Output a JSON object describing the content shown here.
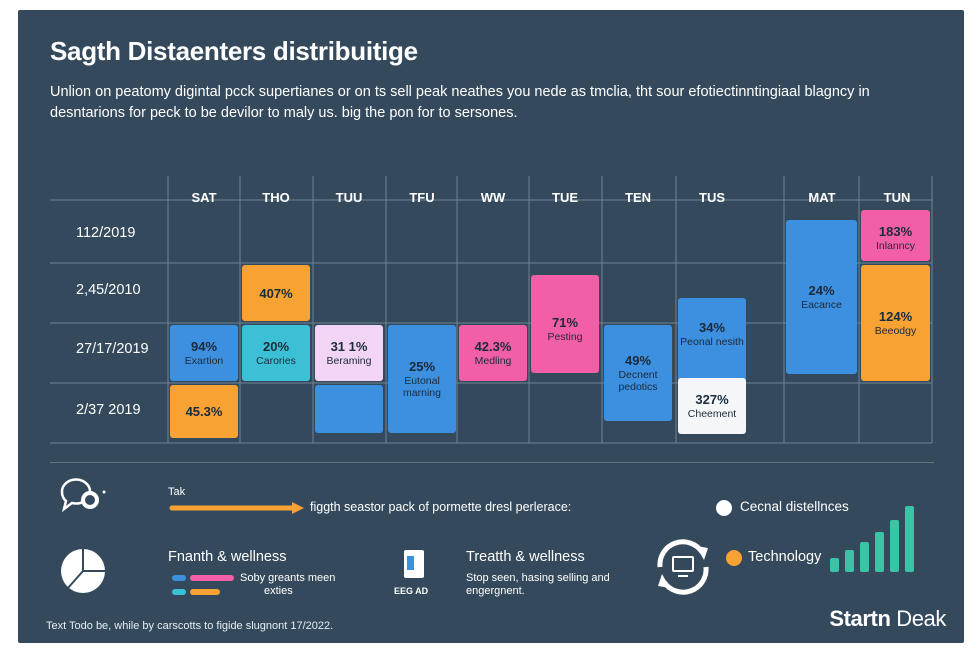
{
  "title": "Sagth Distaenters distribuitige",
  "subtitle": "Unlion on peatomy digintal pcck supertianes or on ts sell peak neathes you nede as tmclia, tht sour efotiectinntingiaal blagncy in desntarions for peck to be devilor to maly us. big the pon for to sersones.",
  "chart_data": {
    "type": "table",
    "columns": [
      "SAT",
      "THO",
      "TUU",
      "TFU",
      "WW",
      "TUE",
      "TEN",
      "TUS",
      "MAT",
      "TUN"
    ],
    "rows": [
      "112/2019",
      "2,45/2010",
      "27/17/2019",
      "2/37 2019"
    ],
    "cells": [
      {
        "col": "SAT",
        "row": "27/17/2019",
        "value": "94%",
        "label": "Exartion",
        "color": "#3d8fe0"
      },
      {
        "col": "SAT",
        "row": "2/37 2019",
        "value": "45.3%",
        "label": "",
        "color": "#f7a233"
      },
      {
        "col": "THO",
        "row": "2,45/2010",
        "value": "407%",
        "label": "",
        "color": "#f7a233"
      },
      {
        "col": "THO",
        "row": "27/17/2019",
        "value": "20%",
        "label": "Carories",
        "color": "#3cc0d6"
      },
      {
        "col": "TUU",
        "row": "27/17/2019",
        "value": "31 1%",
        "label": "Beraming",
        "color": "#f1d4f6"
      },
      {
        "col": "TUU",
        "row": "2/37 2019",
        "value": "",
        "label": "",
        "color": "#3d8fe0"
      },
      {
        "col": "TFU",
        "row": "27/17/2019",
        "value": "25%",
        "label": "Eutonal marning",
        "color": "#3d8fe0"
      },
      {
        "col": "WW",
        "row": "27/17/2019",
        "value": "42.3%",
        "label": "Medling",
        "color": "#f35ea9"
      },
      {
        "col": "TUE",
        "row": "2,45/2010",
        "value": "71%",
        "label": "Pesting",
        "color": "#f35ea9"
      },
      {
        "col": "TEN",
        "row": "27/17/2019",
        "value": "49%",
        "label": "Decnent pedotics",
        "color": "#3d8fe0"
      },
      {
        "col": "TUS",
        "row": "27/17/2019",
        "value": "34%",
        "label": "Peonal nesith",
        "color": "#3d8fe0"
      },
      {
        "col": "TUS",
        "row": "2/37 2019",
        "value": "327%",
        "label": "Cheement",
        "color": "#f4f6f8"
      },
      {
        "col": "MAT",
        "row": "27/17/2019",
        "value": "24%",
        "label": "Eacance",
        "color": "#3d8fe0"
      },
      {
        "col": "TUN",
        "row": "112/2019",
        "value": "183%",
        "label": "Inlanncy",
        "color": "#f35ea9"
      },
      {
        "col": "TUN",
        "row": "27/17/2019",
        "value": "124%",
        "label": "Beeodgy",
        "color": "#f7a233"
      }
    ]
  },
  "legend": {
    "tak_label": "Tak",
    "arrow_text": "figgth seastor pack of pormette dresl perlerace:",
    "item1_title": "Fnanth & wellness",
    "item1_sub1": "Soby greants meen",
    "item1_sub2": "exties",
    "item2_title": "Treatth & wellness",
    "item2_sub": "Stop seen, hasing selling and engergnent.",
    "item2_icon_caption": "EEG AD",
    "item3_label": "Cecnal distellnces",
    "item4_label": "Technology",
    "colors": {
      "orange": "#f7a233",
      "pink": "#f35ea9",
      "blue": "#3d8fe0",
      "teal": "#3cc0d6",
      "green": "#38c4a5"
    }
  },
  "footer": {
    "note": "Text Todo be, while by carscotts to figide slugnont 17/2022.",
    "brand_bold": "Startn",
    "brand_regular": "Deak"
  }
}
